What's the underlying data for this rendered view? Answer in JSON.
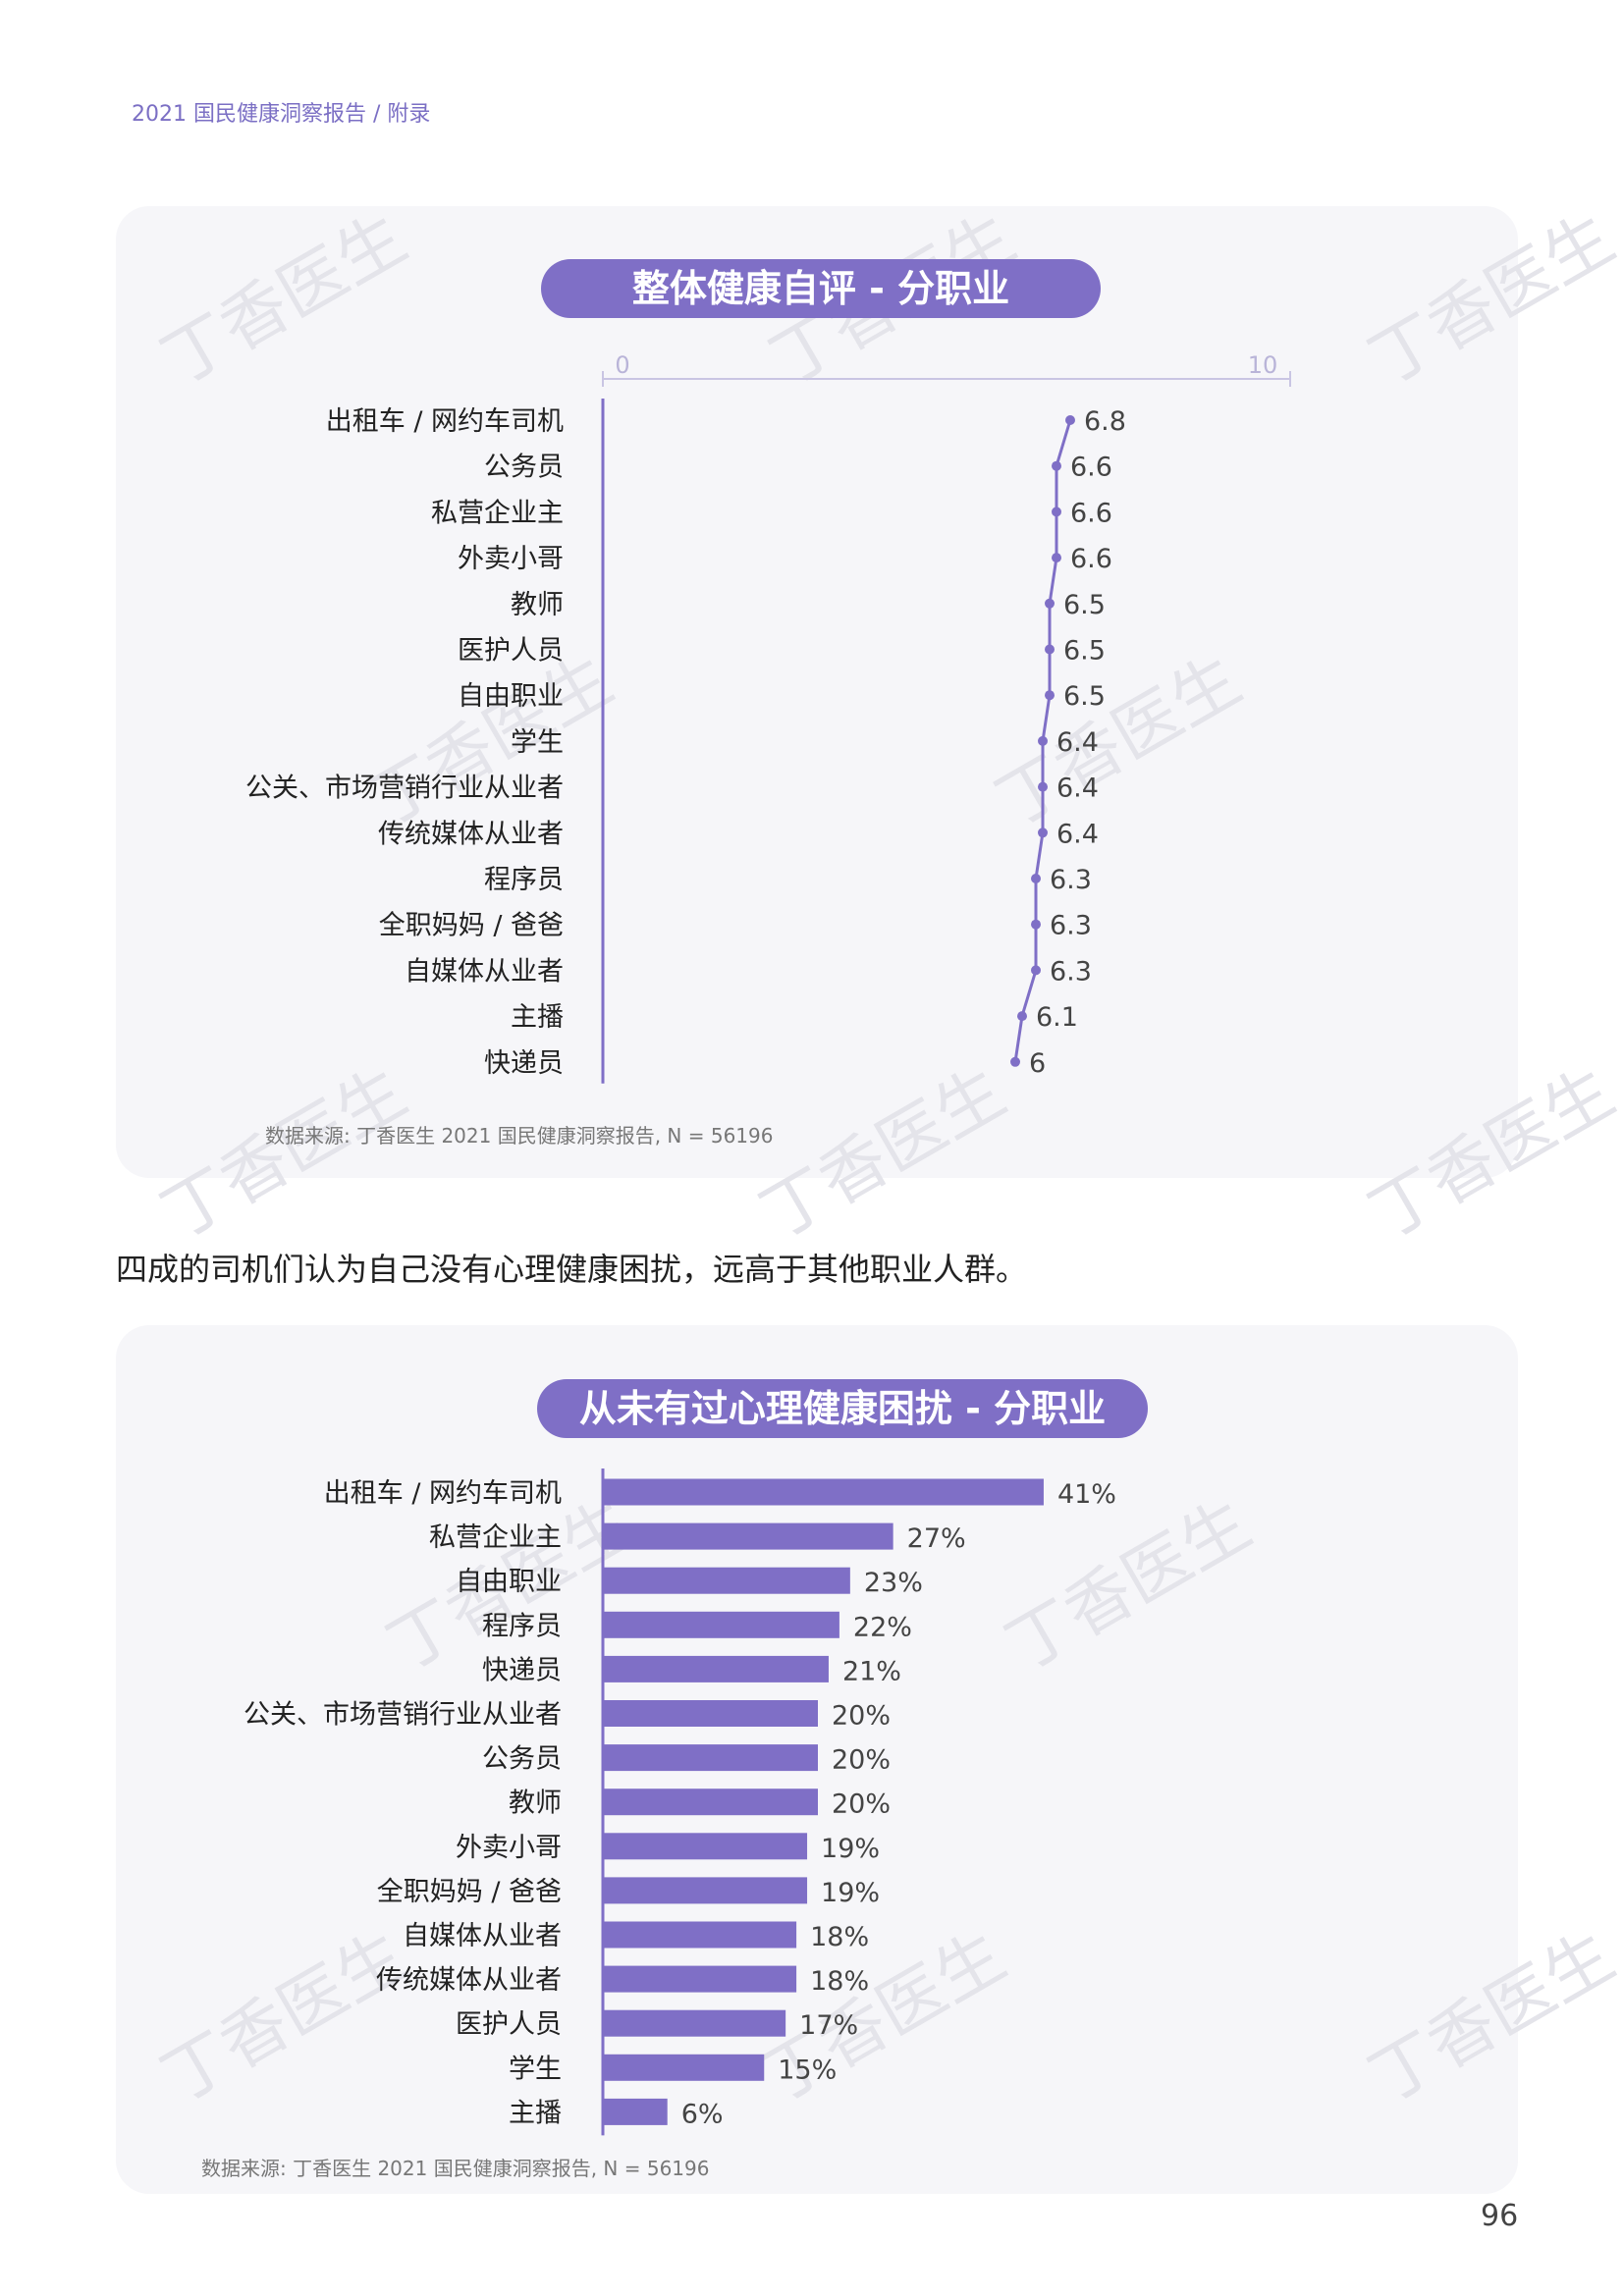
{
  "header": {
    "title": "2021 国民健康洞察报告 / 附录"
  },
  "body_text": "四成的司机们认为自己没有心理健康困扰，远高于其他职业人群。",
  "page_number": "96",
  "watermark": "丁香医生",
  "colors": {
    "accent": "#7f6fc6",
    "panel": "#f6f6f9"
  },
  "chart_data": [
    {
      "type": "line",
      "title": "整体健康自评 - 分职业",
      "categories": [
        "出租车 / 网约车司机",
        "公务员",
        "私营企业主",
        "外卖小哥",
        "教师",
        "医护人员",
        "自由职业",
        "学生",
        "公关、市场营销行业从业者",
        "传统媒体从业者",
        "程序员",
        "全职妈妈 / 爸爸",
        "自媒体从业者",
        "主播",
        "快递员"
      ],
      "values": [
        6.8,
        6.6,
        6.6,
        6.6,
        6.5,
        6.5,
        6.5,
        6.4,
        6.4,
        6.4,
        6.3,
        6.3,
        6.3,
        6.1,
        6
      ],
      "value_labels": [
        "6.8",
        "6.6",
        "6.6",
        "6.6",
        "6.5",
        "6.5",
        "6.5",
        "6.4",
        "6.4",
        "6.4",
        "6.3",
        "6.3",
        "6.3",
        "6.1",
        "6"
      ],
      "xlim": [
        0,
        10
      ],
      "ticks": [
        "0",
        "10"
      ],
      "source": "数据来源: 丁香医生 2021 国民健康洞察报告, N = 56196"
    },
    {
      "type": "bar",
      "title": "从未有过心理健康困扰 - 分职业",
      "categories": [
        "出租车 / 网约车司机",
        "私营企业主",
        "自由职业",
        "程序员",
        "快递员",
        "公关、市场营销行业从业者",
        "公务员",
        "教师",
        "外卖小哥",
        "全职妈妈 / 爸爸",
        "自媒体从业者",
        "传统媒体从业者",
        "医护人员",
        "学生",
        "主播"
      ],
      "values": [
        41,
        27,
        23,
        22,
        21,
        20,
        20,
        20,
        19,
        19,
        18,
        18,
        17,
        15,
        6
      ],
      "value_labels": [
        "41%",
        "27%",
        "23%",
        "22%",
        "21%",
        "20%",
        "20%",
        "20%",
        "19%",
        "19%",
        "18%",
        "18%",
        "17%",
        "15%",
        "6%"
      ],
      "unit": "%",
      "source": "数据来源: 丁香医生 2021 国民健康洞察报告, N = 56196"
    }
  ]
}
